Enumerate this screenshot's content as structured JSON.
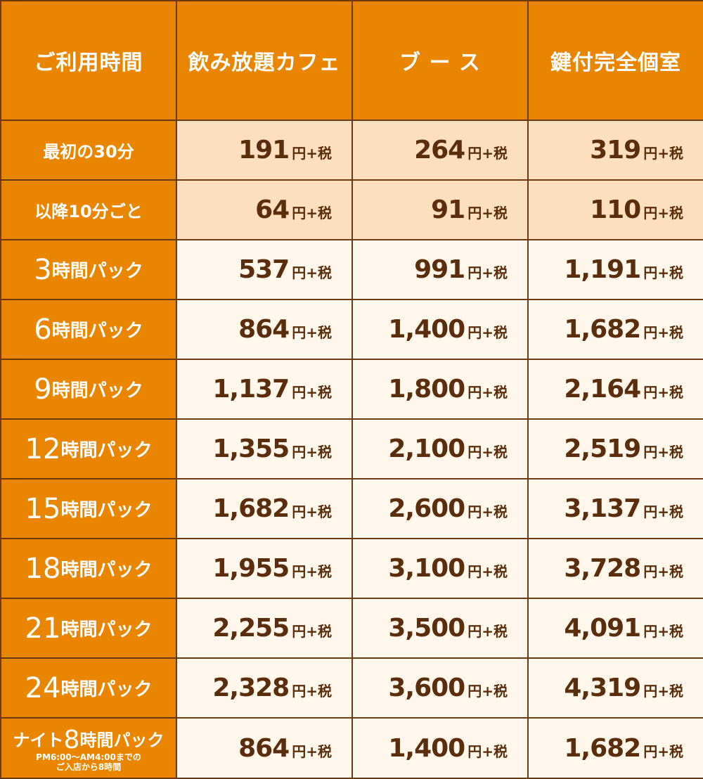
{
  "header": {
    "time_label": "ご利用時間",
    "columns": [
      "飲み放題カフェ",
      "ブ ー ス",
      "鍵付完全個室"
    ]
  },
  "unit": "円+税",
  "colors": {
    "accent_orange": "#ea8500",
    "border_brown": "#6b3a12",
    "text_brown": "#5a2e0c",
    "light_peach": "#fbdfbf",
    "pale_cream": "#fff7ec"
  },
  "rows": [
    {
      "num": "",
      "text": "最初の30分",
      "prices": [
        "191",
        "264",
        "319"
      ]
    },
    {
      "num": "",
      "text": "以降10分ごと",
      "prices": [
        "64",
        "91",
        "110"
      ]
    },
    {
      "num": "3",
      "text": "時間パック",
      "prices": [
        "537",
        "991",
        "1,191"
      ]
    },
    {
      "num": "6",
      "text": "時間パック",
      "prices": [
        "864",
        "1,400",
        "1,682"
      ]
    },
    {
      "num": "9",
      "text": "時間パック",
      "prices": [
        "1,137",
        "1,800",
        "2,164"
      ]
    },
    {
      "num": "12",
      "text": "時間パック",
      "prices": [
        "1,355",
        "2,100",
        "2,519"
      ]
    },
    {
      "num": "15",
      "text": "時間パック",
      "prices": [
        "1,682",
        "2,600",
        "3,137"
      ]
    },
    {
      "num": "18",
      "text": "時間パック",
      "prices": [
        "1,955",
        "3,100",
        "3,728"
      ]
    },
    {
      "num": "21",
      "text": "時間パック",
      "prices": [
        "2,255",
        "3,500",
        "4,091"
      ]
    },
    {
      "num": "24",
      "text": "時間パック",
      "prices": [
        "2,328",
        "3,600",
        "4,319"
      ]
    }
  ],
  "night": {
    "prefix": "ナイト",
    "num": "8",
    "text": "時間パック",
    "note_line1": "PM6:00～AM4:00までの",
    "note_line2": "ご入店から8時間",
    "prices": [
      "864",
      "1,400",
      "1,682"
    ]
  }
}
